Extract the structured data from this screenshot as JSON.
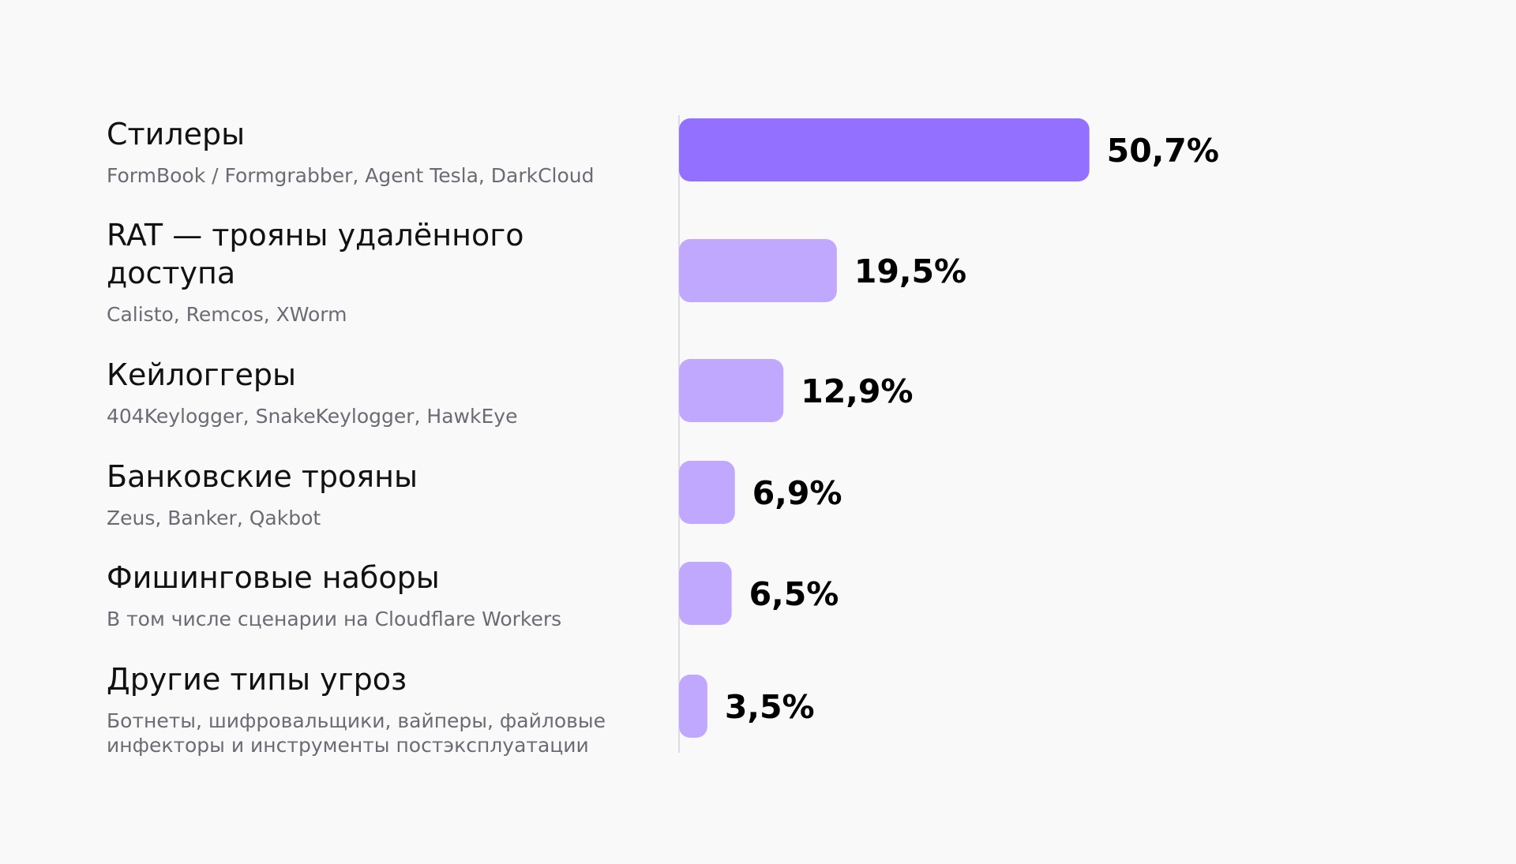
{
  "chart_data": {
    "type": "bar",
    "orientation": "horizontal",
    "categories": [
      {
        "title": [
          "Стилеры"
        ],
        "subtitle": [
          "FormBook / Formgrabber, Agent Tesla, DarkCloud"
        ]
      },
      {
        "title": [
          "RAT — трояны удалённого",
          "доступа"
        ],
        "subtitle": [
          "Calisto, Remcos, XWorm"
        ]
      },
      {
        "title": [
          "Кейлоггеры"
        ],
        "subtitle": [
          "404Keylogger, SnakeKeylogger, HawkEye"
        ]
      },
      {
        "title": [
          "Банковские трояны"
        ],
        "subtitle": [
          "Zeus, Banker, Qakbot"
        ]
      },
      {
        "title": [
          "Фишинговые наборы"
        ],
        "subtitle": [
          "В том числе сценарии на Cloudflare Workers"
        ]
      },
      {
        "title": [
          "Другие типы угроз"
        ],
        "subtitle": [
          "Ботнеты, шифровальщики, вайперы, файловые",
          "инфекторы и инструменты постэксплуатации"
        ]
      }
    ],
    "values": [
      50.7,
      19.5,
      12.9,
      6.9,
      6.5,
      3.5
    ],
    "value_labels": [
      "50,7%",
      "19,5%",
      "12,9%",
      "6,9%",
      "6,5%",
      "3,5%"
    ],
    "grid": false,
    "legend": "none",
    "colors": {
      "highlight": "#9370ff",
      "bar": "#c0a8ff",
      "axis": "#dcdce0",
      "title_text": "#111111",
      "subtitle_text": "#6b6b73",
      "value_text": "#000000",
      "background": "#f9f9fa"
    }
  }
}
